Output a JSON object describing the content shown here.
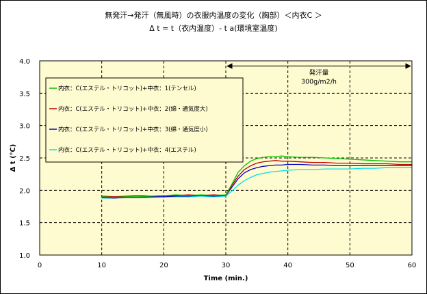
{
  "chart_data": {
    "type": "line",
    "title": "無発汗→発汗（無風時）の衣服内温度の変化（胸部）＜内衣C ＞",
    "subtitle": "Δ t = t（衣内温度）- t a(環境室温度)",
    "xlabel": "Time  (min.)",
    "ylabel": "Δ t  (℃)",
    "xlim": [
      0,
      60
    ],
    "ylim": [
      1.0,
      4.0
    ],
    "x_ticks": [
      "0",
      "10",
      "20",
      "30",
      "40",
      "50",
      "60"
    ],
    "y_ticks": [
      "1.0",
      "1.5",
      "2.0",
      "2.5",
      "3.0",
      "3.5",
      "4.0"
    ],
    "grid": true,
    "legend_position": "top-left",
    "background": "#fffbd0",
    "annotation": {
      "line1": "発汗量",
      "line2": "300g/m2/h",
      "x_start": 30,
      "x_end": 60,
      "y": 3.92
    },
    "series": [
      {
        "name": "内衣：C(エステル・トリコット)+中衣：1(テンセル)",
        "color": "#00c000",
        "x": [
          10,
          12,
          14,
          16,
          18,
          20,
          22,
          24,
          26,
          28,
          30,
          31,
          32,
          33,
          34,
          35,
          36,
          37,
          38,
          39,
          40,
          42,
          44,
          46,
          48,
          50,
          52,
          54,
          56,
          58,
          60
        ],
        "y": [
          1.9,
          1.89,
          1.9,
          1.9,
          1.91,
          1.92,
          1.93,
          1.92,
          1.93,
          1.92,
          1.93,
          2.1,
          2.28,
          2.38,
          2.45,
          2.49,
          2.51,
          2.52,
          2.52,
          2.53,
          2.52,
          2.51,
          2.51,
          2.5,
          2.49,
          2.48,
          2.47,
          2.46,
          2.45,
          2.44,
          2.44
        ]
      },
      {
        "name": "内衣：C(エステル・トリコット)+中衣：2(綿・通気度大)",
        "color": "#c00000",
        "x": [
          10,
          12,
          14,
          16,
          18,
          20,
          22,
          24,
          26,
          28,
          30,
          31,
          32,
          33,
          34,
          35,
          36,
          37,
          38,
          39,
          40,
          42,
          44,
          46,
          48,
          50,
          52,
          54,
          56,
          58,
          60
        ],
        "y": [
          1.91,
          1.9,
          1.91,
          1.92,
          1.91,
          1.92,
          1.92,
          1.93,
          1.92,
          1.93,
          1.92,
          2.08,
          2.22,
          2.32,
          2.38,
          2.42,
          2.44,
          2.45,
          2.46,
          2.45,
          2.45,
          2.44,
          2.43,
          2.43,
          2.42,
          2.42,
          2.41,
          2.41,
          2.41,
          2.4,
          2.4
        ]
      },
      {
        "name": "内衣：C(エステル・トリコット)+中衣：3(綿・通気度小)",
        "color": "#0000c0",
        "x": [
          10,
          12,
          14,
          16,
          18,
          20,
          22,
          24,
          26,
          28,
          30,
          31,
          32,
          33,
          34,
          35,
          36,
          37,
          38,
          39,
          40,
          42,
          44,
          46,
          48,
          50,
          52,
          54,
          56,
          58,
          60
        ],
        "y": [
          1.89,
          1.88,
          1.89,
          1.89,
          1.9,
          1.9,
          1.91,
          1.91,
          1.92,
          1.91,
          1.92,
          2.05,
          2.18,
          2.27,
          2.32,
          2.35,
          2.37,
          2.38,
          2.39,
          2.39,
          2.4,
          2.4,
          2.39,
          2.39,
          2.38,
          2.38,
          2.38,
          2.38,
          2.38,
          2.38,
          2.38
        ]
      },
      {
        "name": "内衣：C(エステル・トリコット)+中衣：4(エステル)",
        "color": "#00e0e0",
        "x": [
          10,
          12,
          14,
          16,
          18,
          20,
          22,
          24,
          26,
          28,
          30,
          31,
          32,
          33,
          34,
          35,
          36,
          37,
          38,
          39,
          40,
          42,
          44,
          46,
          48,
          50,
          52,
          54,
          56,
          58,
          60
        ],
        "y": [
          1.88,
          1.88,
          1.89,
          1.89,
          1.89,
          1.9,
          1.9,
          1.9,
          1.91,
          1.9,
          1.91,
          1.99,
          2.08,
          2.15,
          2.2,
          2.24,
          2.26,
          2.28,
          2.29,
          2.3,
          2.31,
          2.32,
          2.32,
          2.33,
          2.33,
          2.33,
          2.34,
          2.34,
          2.35,
          2.35,
          2.35
        ]
      }
    ]
  }
}
